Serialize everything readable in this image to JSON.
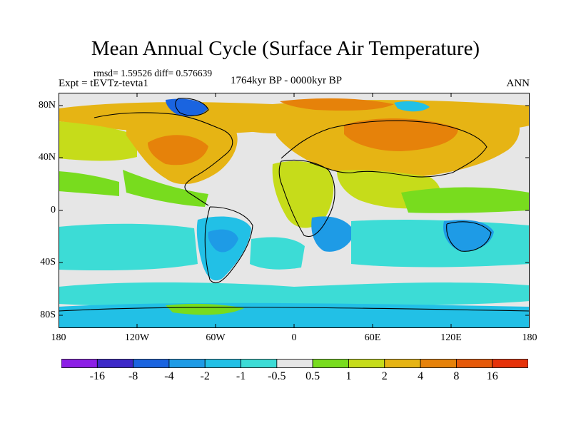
{
  "title": "Mean Annual Cycle (Surface Air Temperature)",
  "stats": "rmsd= 1.59526 diff= 0.576639",
  "experiment": "Expt = tEVTz-tevta1",
  "period": "1764kyr BP - 0000kyr BP",
  "season": "ANN",
  "lat_ticks": [
    "80N",
    "40N",
    "0",
    "40S",
    "80S"
  ],
  "lon_ticks": [
    "180",
    "120W",
    "60W",
    "0",
    "60E",
    "120E",
    "180"
  ],
  "colorbar": {
    "labels": [
      "-16",
      "-8",
      "-4",
      "-2",
      "-1",
      "-0.5",
      "0.5",
      "1",
      "2",
      "4",
      "8",
      "16"
    ],
    "colors": [
      "#8c1ee6",
      "#3c28c8",
      "#1a64e0",
      "#1e9be6",
      "#22c0e6",
      "#3cdcd6",
      "#e6e6e6",
      "#78dc1e",
      "#c6dc1a",
      "#e6b414",
      "#e6820a",
      "#e65a0a",
      "#e6320a"
    ]
  },
  "map_colors": {
    "ocean": "#e6e6e6",
    "deep_cold": "#1e9be6",
    "cold": "#22c0e6",
    "cool": "#3cdcd6",
    "mild": "#78dc1e",
    "warm": "#c6dc1a",
    "hot": "#e6b414",
    "very_hot": "#e6820a",
    "arctic_cold": "#1a64e0",
    "coast": "#000000"
  }
}
